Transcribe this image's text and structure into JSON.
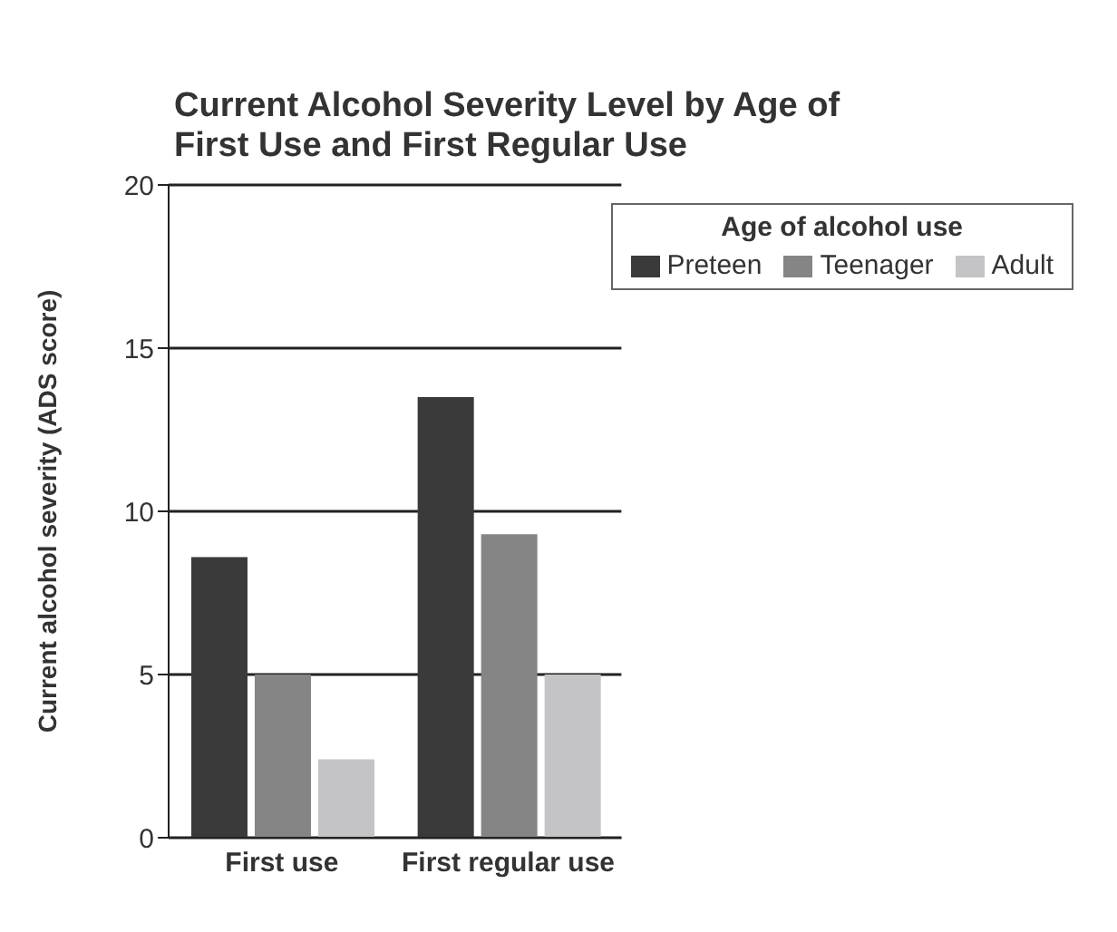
{
  "chart_data": {
    "type": "bar",
    "title": "Current Alcohol Severity Level by Age of First Use and First Regular Use",
    "ylabel": "Current alcohol severity (ADS score)",
    "legend_title": "Age of alcohol use",
    "categories": [
      "First use",
      "First regular use"
    ],
    "series": [
      {
        "name": "Preteen",
        "color": "#3a3a3a",
        "values": [
          8.6,
          13.5
        ]
      },
      {
        "name": "Teenager",
        "color": "#858585",
        "values": [
          5.0,
          9.3
        ]
      },
      {
        "name": "Adult",
        "color": "#c4c4c6",
        "values": [
          2.4,
          5.0
        ]
      }
    ],
    "ylim": [
      0,
      20
    ],
    "yticks": [
      0,
      5,
      10,
      15,
      20
    ],
    "grid": "y",
    "legend": "top right"
  }
}
